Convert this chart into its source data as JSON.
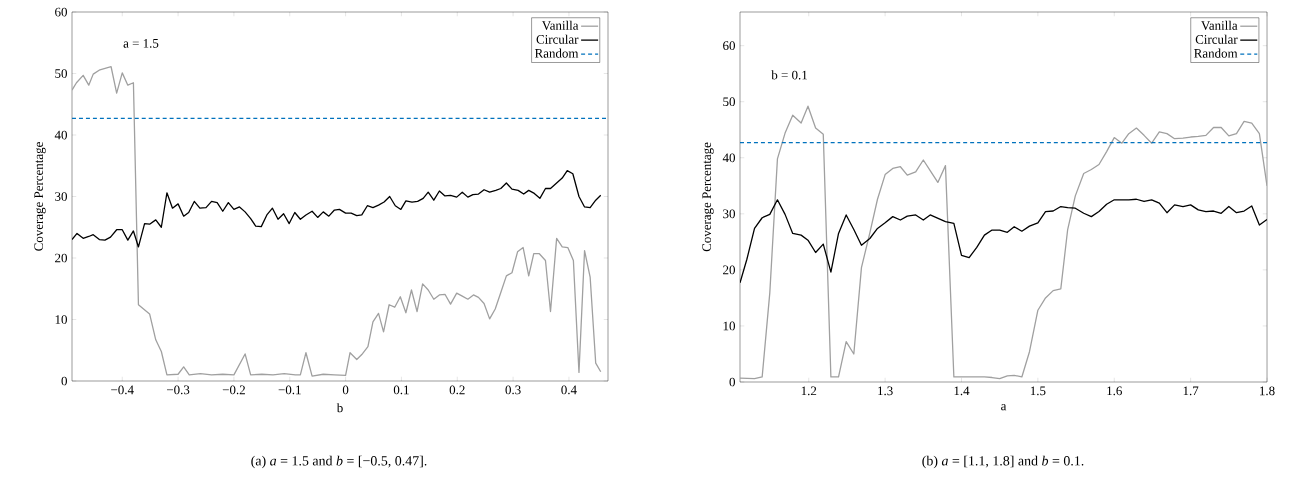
{
  "chart_data": [
    {
      "type": "line",
      "xlabel": "b",
      "ylabel": "Coverage Percentage",
      "xlim": [
        -0.49,
        0.47
      ],
      "ylim": [
        0,
        60
      ],
      "xticks": [
        {
          "value": -0.4,
          "label": "−0.4"
        },
        {
          "value": -0.3,
          "label": "−0.3"
        },
        {
          "value": -0.2,
          "label": "−0.2"
        },
        {
          "value": -0.1,
          "label": "−0.1"
        },
        0,
        0.1,
        0.2,
        0.3,
        0.4
      ],
      "yticks": [
        0,
        10,
        20,
        30,
        40,
        50,
        60
      ],
      "legend": "top right",
      "marker": "none",
      "grid": false,
      "annotations": [
        "a = 1.5",
        "(a) *a* = 1.5 and *b* = [−0.5, 0.47]."
      ],
      "ref_lines": [
        {
          "axis": "y",
          "value": 42.7,
          "label": "Random",
          "color": "#0072bd",
          "line_style": "dashed"
        }
      ],
      "series": [
        {
          "name": "Vanilla",
          "color": "#a0a0a0",
          "line_style": "solid",
          "x": [
            -0.49,
            -0.482,
            -0.47,
            -0.46,
            -0.452,
            -0.44,
            -0.42,
            -0.41,
            -0.4,
            -0.39,
            -0.38,
            -0.371,
            -0.351,
            -0.34,
            -0.33,
            -0.32,
            -0.3,
            -0.29,
            -0.28,
            -0.26,
            -0.24,
            -0.22,
            -0.2,
            -0.18,
            -0.17,
            -0.15,
            -0.13,
            -0.11,
            -0.09,
            -0.081,
            -0.071,
            -0.06,
            -0.04,
            -0.02,
            0,
            0.008,
            0.02,
            0.029,
            0.04,
            0.049,
            0.059,
            0.068,
            0.078,
            0.088,
            0.098,
            0.108,
            0.118,
            0.128,
            0.138,
            0.148,
            0.158,
            0.168,
            0.178,
            0.188,
            0.199,
            0.209,
            0.219,
            0.229,
            0.238,
            0.248,
            0.258,
            0.268,
            0.278,
            0.288,
            0.298,
            0.308,
            0.318,
            0.328,
            0.337,
            0.347,
            0.358,
            0.367,
            0.378,
            0.388,
            0.398,
            0.408,
            0.418,
            0.428,
            0.438,
            0.448,
            0.457
          ],
          "values": [
            47.3,
            48.5,
            49.7,
            48.1,
            49.9,
            50.6,
            51.1,
            46.8,
            50.1,
            48.1,
            48.5,
            12.4,
            10.9,
            6.7,
            4.8,
            1.0,
            1.1,
            2.3,
            1.0,
            1.2,
            1.0,
            1.1,
            1.0,
            4.4,
            1.0,
            1.1,
            1.0,
            1.2,
            1.0,
            1.0,
            4.6,
            0.8,
            1.1,
            1.0,
            0.9,
            4.6,
            3.5,
            4.3,
            5.6,
            9.6,
            11.0,
            8.0,
            12.4,
            12.0,
            13.7,
            11.1,
            14.8,
            11.3,
            15.8,
            14.8,
            13.3,
            14.0,
            14.1,
            12.5,
            14.3,
            13.8,
            13.3,
            14.0,
            13.6,
            12.6,
            10.1,
            11.7,
            14.4,
            17.1,
            17.6,
            21.0,
            21.7,
            17.1,
            20.7,
            20.7,
            19.6,
            11.3,
            23.2,
            21.8,
            21.7,
            19.6,
            1.4,
            21.2,
            16.9,
            2.9,
            1.5
          ]
        },
        {
          "name": "Circular",
          "color": "#000000",
          "line_style": "solid",
          "x": [
            -0.49,
            -0.481,
            -0.47,
            -0.46,
            -0.452,
            -0.441,
            -0.431,
            -0.421,
            -0.41,
            -0.4,
            -0.39,
            -0.38,
            -0.371,
            -0.36,
            -0.351,
            -0.34,
            -0.33,
            -0.32,
            -0.31,
            -0.3,
            -0.29,
            -0.281,
            -0.271,
            -0.261,
            -0.25,
            -0.24,
            -0.23,
            -0.22,
            -0.21,
            -0.2,
            -0.19,
            -0.18,
            -0.17,
            -0.161,
            -0.151,
            -0.141,
            -0.131,
            -0.121,
            -0.111,
            -0.101,
            -0.091,
            -0.081,
            -0.071,
            -0.06,
            -0.05,
            -0.04,
            -0.03,
            -0.02,
            -0.011,
            0,
            0.01,
            0.02,
            0.029,
            0.039,
            0.049,
            0.059,
            0.069,
            0.079,
            0.089,
            0.099,
            0.108,
            0.119,
            0.129,
            0.139,
            0.148,
            0.158,
            0.168,
            0.178,
            0.188,
            0.199,
            0.209,
            0.219,
            0.228,
            0.238,
            0.248,
            0.258,
            0.269,
            0.278,
            0.288,
            0.298,
            0.309,
            0.319,
            0.328,
            0.338,
            0.348,
            0.358,
            0.367,
            0.378,
            0.388,
            0.397,
            0.407,
            0.418,
            0.428,
            0.438,
            0.448,
            0.457
          ],
          "values": [
            23.0,
            24.0,
            23.2,
            23.5,
            23.8,
            23.0,
            22.9,
            23.4,
            24.6,
            24.6,
            22.9,
            24.4,
            21.8,
            25.6,
            25.5,
            26.2,
            25.0,
            30.6,
            28.1,
            28.8,
            26.8,
            27.4,
            29.2,
            28.1,
            28.2,
            29.2,
            29.0,
            27.6,
            29.0,
            27.9,
            28.3,
            27.5,
            26.4,
            25.2,
            25.1,
            27.0,
            28.1,
            26.3,
            27.2,
            25.6,
            27.4,
            26.3,
            27.0,
            27.6,
            26.6,
            27.5,
            26.8,
            27.8,
            27.9,
            27.3,
            27.3,
            26.9,
            27.0,
            28.5,
            28.2,
            28.6,
            29.1,
            30.0,
            28.5,
            27.9,
            29.3,
            29.1,
            29.2,
            29.7,
            30.7,
            29.4,
            30.9,
            30.1,
            30.2,
            29.9,
            30.7,
            29.9,
            30.3,
            30.4,
            31.1,
            30.7,
            31.0,
            31.3,
            32.2,
            31.2,
            31.0,
            30.4,
            31.0,
            30.5,
            29.7,
            31.3,
            31.3,
            32.2,
            33.0,
            34.2,
            33.7,
            30.0,
            28.3,
            28.2,
            29.4,
            30.2
          ]
        }
      ]
    },
    {
      "type": "line",
      "xlabel": "a",
      "ylabel": "Coverage Percentage",
      "xlim": [
        1.11,
        1.8
      ],
      "ylim": [
        0,
        66
      ],
      "xticks": [
        1.2,
        1.3,
        1.4,
        1.5,
        1.6,
        1.7,
        1.8
      ],
      "yticks": [
        0,
        10,
        20,
        30,
        40,
        50,
        60
      ],
      "legend": "top right",
      "marker": "none",
      "grid": false,
      "annotations": [
        "b = 0.1",
        "(b) *a* = [1.1, 1.8] and *b* = 0.1."
      ],
      "ref_lines": [
        {
          "axis": "y",
          "value": 42.7,
          "label": "Random",
          "color": "#0072bd",
          "line_style": "dashed"
        }
      ],
      "series": [
        {
          "name": "Vanilla",
          "color": "#a0a0a0",
          "line_style": "solid",
          "x": [
            1.11,
            1.129,
            1.139,
            1.149,
            1.159,
            1.169,
            1.179,
            1.19,
            1.199,
            1.209,
            1.219,
            1.229,
            1.239,
            1.249,
            1.259,
            1.269,
            1.28,
            1.29,
            1.3,
            1.31,
            1.32,
            1.329,
            1.34,
            1.35,
            1.359,
            1.369,
            1.379,
            1.39,
            1.4,
            1.43,
            1.44,
            1.45,
            1.46,
            1.469,
            1.479,
            1.489,
            1.5,
            1.51,
            1.52,
            1.53,
            1.539,
            1.549,
            1.56,
            1.57,
            1.58,
            1.59,
            1.6,
            1.61,
            1.619,
            1.629,
            1.639,
            1.649,
            1.659,
            1.669,
            1.679,
            1.69,
            1.7,
            1.71,
            1.72,
            1.73,
            1.74,
            1.75,
            1.76,
            1.77,
            1.78,
            1.79,
            1.8
          ],
          "values": [
            0.7,
            0.6,
            0.9,
            15.9,
            39.8,
            44.4,
            47.6,
            46.2,
            49.2,
            45.3,
            44.2,
            0.9,
            0.9,
            7.2,
            5.0,
            20.4,
            26.6,
            32.6,
            37.0,
            38.1,
            38.4,
            36.9,
            37.5,
            39.6,
            37.7,
            35.6,
            38.6,
            0.9,
            0.9,
            0.9,
            0.8,
            0.6,
            1.1,
            1.2,
            0.9,
            5.4,
            12.8,
            15.0,
            16.3,
            16.6,
            27.2,
            33.2,
            37.2,
            37.9,
            38.8,
            41.1,
            43.6,
            42.6,
            44.3,
            45.3,
            44.0,
            42.6,
            44.6,
            44.3,
            43.4,
            43.5,
            43.7,
            43.8,
            44.0,
            45.4,
            45.4,
            43.9,
            44.3,
            46.5,
            46.2,
            44.3,
            35.0
          ]
        },
        {
          "name": "Circular",
          "color": "#000000",
          "line_style": "solid",
          "x": [
            1.11,
            1.119,
            1.129,
            1.139,
            1.149,
            1.159,
            1.169,
            1.179,
            1.19,
            1.199,
            1.209,
            1.219,
            1.229,
            1.239,
            1.249,
            1.259,
            1.269,
            1.28,
            1.29,
            1.3,
            1.31,
            1.32,
            1.329,
            1.34,
            1.35,
            1.359,
            1.369,
            1.379,
            1.39,
            1.4,
            1.41,
            1.42,
            1.43,
            1.44,
            1.45,
            1.46,
            1.469,
            1.479,
            1.489,
            1.5,
            1.51,
            1.52,
            1.53,
            1.539,
            1.549,
            1.56,
            1.57,
            1.58,
            1.59,
            1.6,
            1.61,
            1.619,
            1.629,
            1.639,
            1.649,
            1.659,
            1.669,
            1.679,
            1.69,
            1.7,
            1.71,
            1.72,
            1.73,
            1.74,
            1.75,
            1.76,
            1.77,
            1.78,
            1.79,
            1.8
          ],
          "values": [
            17.7,
            21.9,
            27.4,
            29.3,
            29.9,
            32.5,
            29.9,
            26.5,
            26.2,
            25.3,
            23.1,
            24.6,
            19.6,
            26.5,
            29.8,
            27.2,
            24.4,
            25.6,
            27.4,
            28.4,
            29.5,
            28.9,
            29.6,
            29.8,
            28.9,
            29.8,
            29.2,
            28.6,
            28.3,
            22.6,
            22.2,
            24.0,
            26.2,
            27.1,
            27.1,
            26.7,
            27.7,
            26.9,
            27.8,
            28.4,
            30.4,
            30.5,
            31.3,
            31.1,
            31.0,
            30.1,
            29.5,
            30.4,
            31.7,
            32.5,
            32.5,
            32.5,
            32.6,
            32.2,
            32.5,
            31.9,
            30.2,
            31.6,
            31.3,
            31.6,
            30.7,
            30.4,
            30.5,
            30.1,
            31.3,
            30.2,
            30.5,
            31.4,
            28.0,
            29.0
          ]
        }
      ]
    }
  ]
}
